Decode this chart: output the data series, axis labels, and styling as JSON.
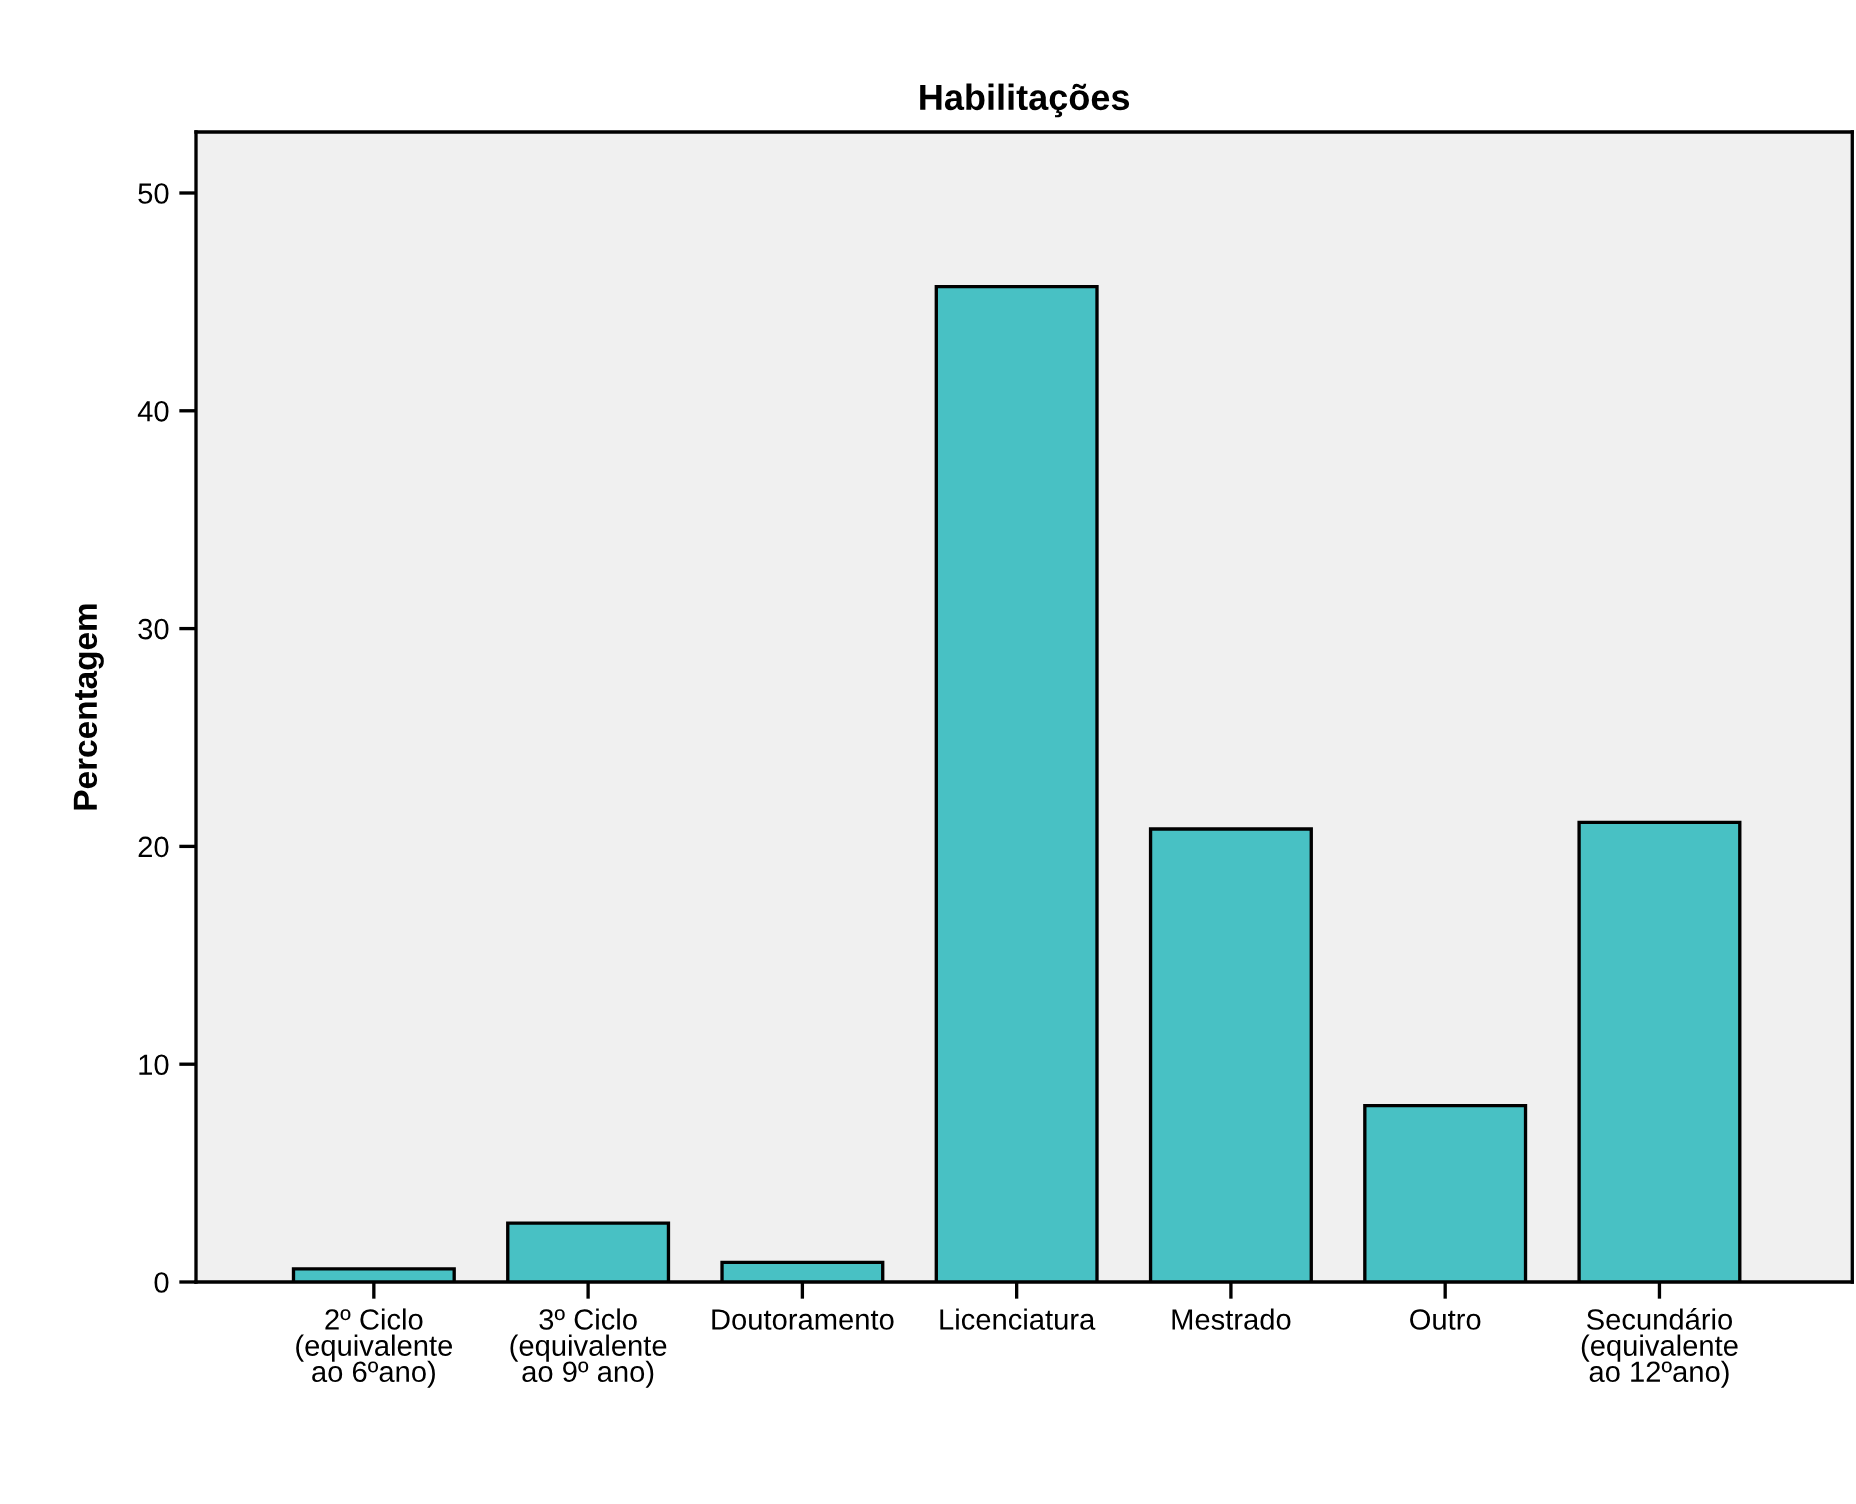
{
  "chart_data": {
    "type": "bar",
    "title": "Habilitações",
    "ylabel": "Percentagem",
    "categories": [
      "2º Ciclo\n(equivalente\nao 6ºano)",
      "3º Ciclo\n(equivalente\nao 9º ano)",
      "Doutoramento",
      "Licenciatura",
      "Mestrado",
      "Outro",
      "Secundário\n(equivalente\nao 12ºano)"
    ],
    "values": [
      0.6,
      2.7,
      0.9,
      45.7,
      20.8,
      8.1,
      21.1
    ],
    "color": "#48c1c4",
    "ylim": [
      0,
      52.8
    ],
    "yticks": [
      0,
      10,
      20,
      30,
      40,
      50
    ],
    "grid": false
  }
}
